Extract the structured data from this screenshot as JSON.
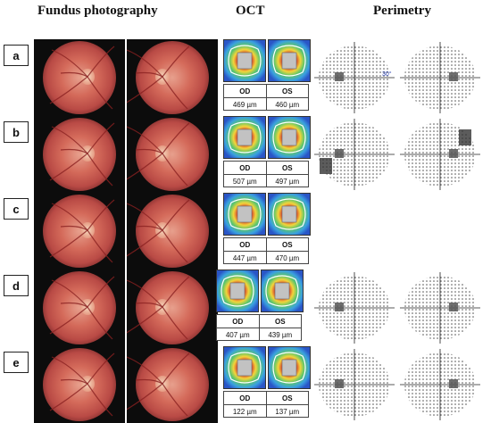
{
  "headers": {
    "fundus": "Fundus photography",
    "oct": "OCT",
    "perimetry": "Perimetry"
  },
  "rows": [
    {
      "label": "a",
      "od_label": "OD",
      "os_label": "OS",
      "od_value": "469 µm",
      "os_value": "460 µm",
      "perimetry_mark": "30°"
    },
    {
      "label": "b",
      "od_label": "OD",
      "os_label": "OS",
      "od_value": "507 µm",
      "os_value": "497 µm"
    },
    {
      "label": "c",
      "od_label": "OD",
      "os_label": "OS",
      "od_value": "447 µm",
      "os_value": "470 µm"
    },
    {
      "label": "d",
      "od_label": "OD",
      "os_label": "OS",
      "od_value": "407 µm",
      "os_value": "439 µm"
    },
    {
      "label": "e",
      "od_label": "OD",
      "os_label": "OS",
      "od_value": "122 µm",
      "os_value": "137 µm"
    }
  ]
}
